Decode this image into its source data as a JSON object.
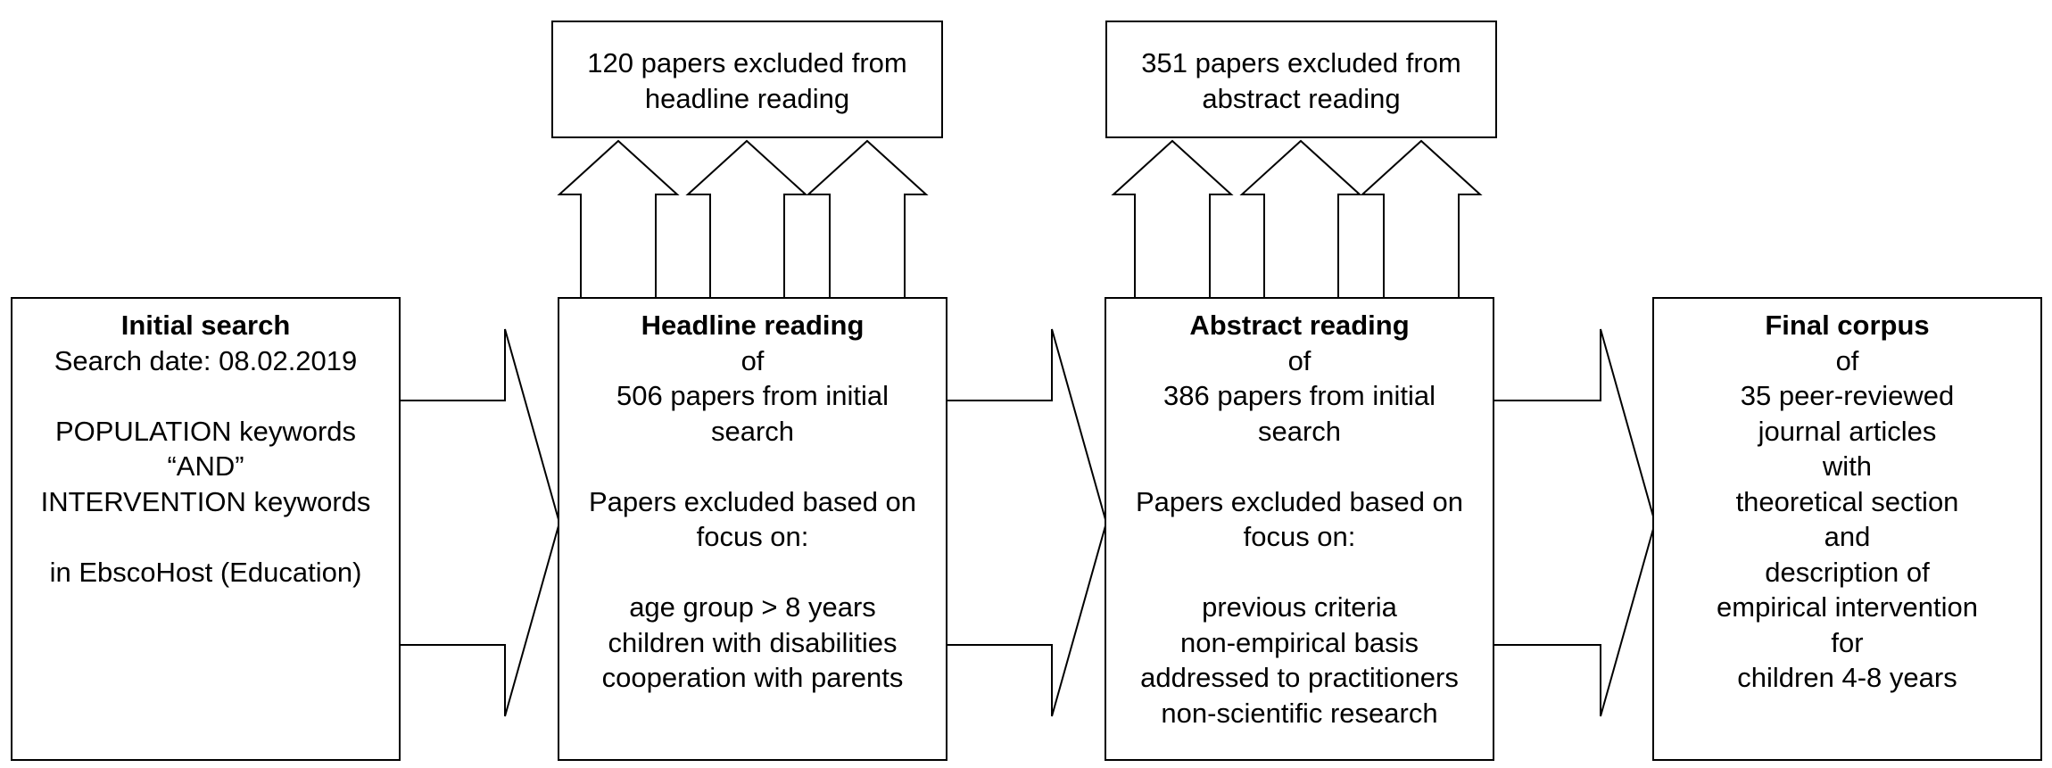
{
  "excluded_boxes": [
    {
      "lines": [
        "120 papers excluded from",
        "headline reading"
      ]
    },
    {
      "lines": [
        "351 papers excluded from",
        "abstract reading"
      ]
    }
  ],
  "steps": [
    {
      "title": "Initial search",
      "lines": [
        "Search date: 08.02.2019",
        "",
        "POPULATION keywords",
        "“AND”",
        "INTERVENTION keywords",
        "",
        "in EbscoHost (Education)"
      ]
    },
    {
      "title": "Headline reading",
      "lines": [
        "of",
        "506 papers from initial",
        "search",
        "",
        "Papers excluded based on",
        "focus on:",
        "",
        "age group > 8 years",
        "children with disabilities",
        "cooperation with parents"
      ]
    },
    {
      "title": "Abstract reading",
      "lines": [
        "of",
        "386 papers from initial",
        "search",
        "",
        "Papers excluded based on",
        "focus on:",
        "",
        "previous criteria",
        "non-empirical basis",
        "addressed to practitioners",
        "non-scientific research"
      ]
    },
    {
      "title": "Final corpus",
      "lines": [
        "of",
        "35 peer-reviewed",
        "journal articles",
        "with",
        "theoretical section",
        "and",
        "description of",
        "empirical intervention",
        "for",
        "children 4-8 years"
      ]
    }
  ]
}
